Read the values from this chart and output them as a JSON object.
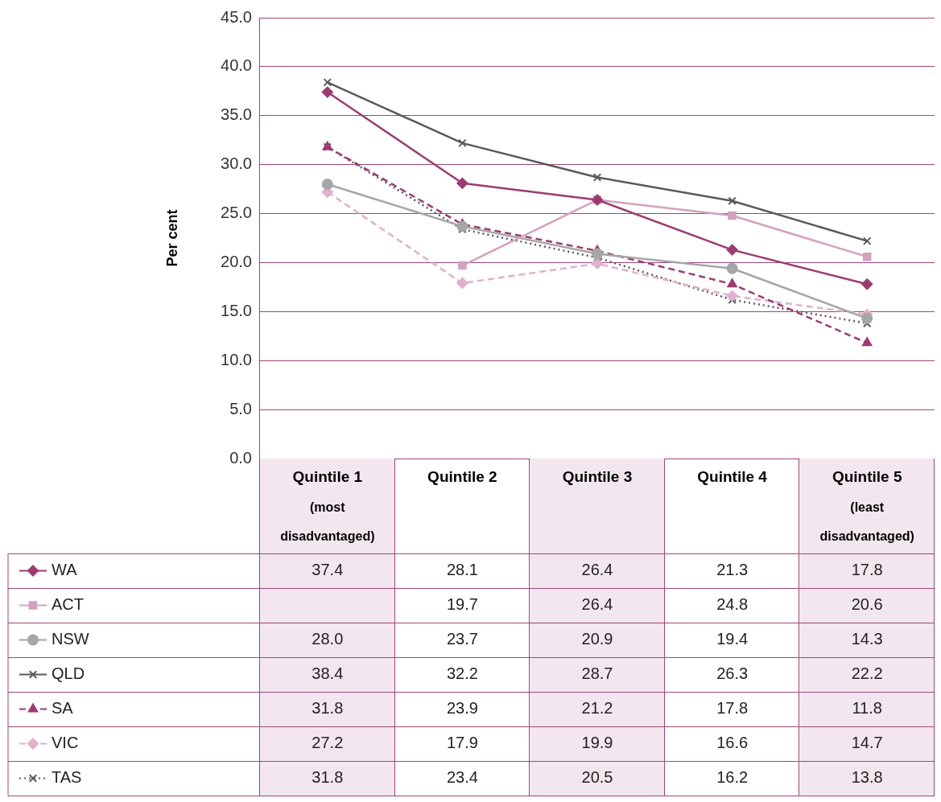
{
  "chart_data": {
    "type": "line",
    "ylabel": "Per cent",
    "categories": [
      "Quintile 1 (most disadvantaged)",
      "Quintile 2",
      "Quintile 3",
      "Quintile 4",
      "Quintile 5 (least disadvantaged)"
    ],
    "ylim": [
      0,
      45
    ],
    "yticks": [
      {
        "value": 0,
        "label": "0.0"
      },
      {
        "value": 5,
        "label": "5.0"
      },
      {
        "value": 10,
        "label": "10.0"
      },
      {
        "value": 15,
        "label": "15.0"
      },
      {
        "value": 20,
        "label": "20.0"
      },
      {
        "value": 25,
        "label": "25.0"
      },
      {
        "value": 30,
        "label": "30.0"
      },
      {
        "value": 35,
        "label": "35.0"
      },
      {
        "value": 40,
        "label": "40.0"
      },
      {
        "value": 45,
        "label": "45.0"
      }
    ],
    "grid": "y",
    "legend": "bottom",
    "series": [
      {
        "name": "WA",
        "color": "#9e3a72",
        "marker": "diamond",
        "line_style": "solid",
        "values": [
          37.4,
          28.1,
          26.4,
          21.3,
          17.8
        ],
        "value_labels": [
          "37.4",
          "28.1",
          "26.4",
          "21.3",
          "17.8"
        ]
      },
      {
        "name": "ACT",
        "color": "#d4a0bf",
        "marker": "square",
        "line_style": "solid",
        "values": [
          null,
          19.7,
          26.4,
          24.8,
          20.6
        ],
        "value_labels": [
          null,
          "19.7",
          "26.4",
          "24.8",
          "20.6"
        ]
      },
      {
        "name": "NSW",
        "color": "#a6a6a6",
        "marker": "circle",
        "line_style": "solid",
        "values": [
          28.0,
          23.7,
          20.9,
          19.4,
          14.3
        ],
        "value_labels": [
          "28.0",
          "23.7",
          "20.9",
          "19.4",
          "14.3"
        ]
      },
      {
        "name": "QLD",
        "color": "#595959",
        "marker": "cross",
        "line_style": "solid",
        "values": [
          38.4,
          32.2,
          28.7,
          26.3,
          22.2
        ],
        "value_labels": [
          "38.4",
          "32.2",
          "28.7",
          "26.3",
          "22.2"
        ]
      },
      {
        "name": "SA",
        "color": "#9e3a72",
        "marker": "triangle",
        "line_style": "dashed",
        "values": [
          31.8,
          23.9,
          21.2,
          17.8,
          11.8
        ],
        "value_labels": [
          "31.8",
          "23.9",
          "21.2",
          "17.8",
          "11.8"
        ]
      },
      {
        "name": "VIC",
        "color": "#e0b0cc",
        "marker": "diamond",
        "line_style": "dashed",
        "values": [
          27.2,
          17.9,
          19.9,
          16.6,
          14.7
        ],
        "value_labels": [
          "27.2",
          "17.9",
          "19.9",
          "16.6",
          "14.7"
        ]
      },
      {
        "name": "TAS",
        "color": "#595959",
        "marker": "cross",
        "line_style": "dotted",
        "values": [
          31.8,
          23.4,
          20.5,
          16.2,
          13.8
        ],
        "value_labels": [
          "31.8",
          "23.4",
          "20.5",
          "16.2",
          "13.8"
        ]
      }
    ]
  }
}
